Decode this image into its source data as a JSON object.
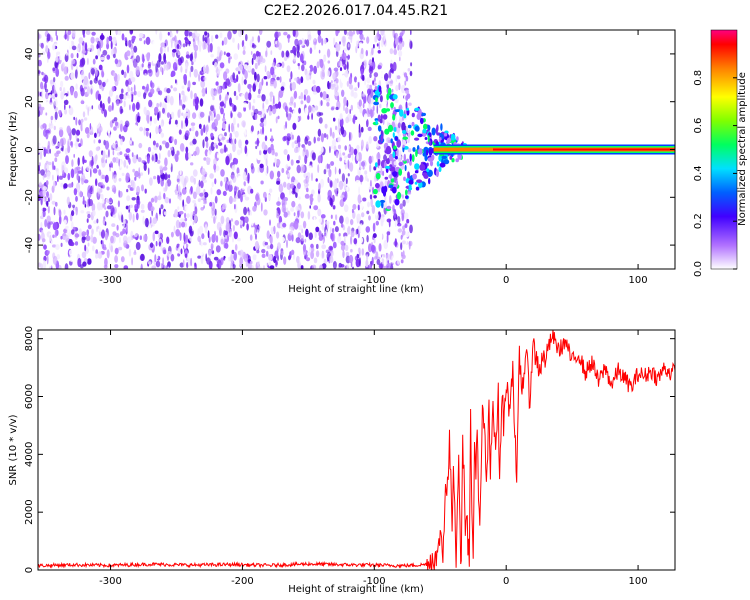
{
  "title": "C2E2.2026.017.04.45.R21",
  "chart_data": [
    {
      "type": "heatmap",
      "xlabel": "Height of straight line (km)",
      "ylabel": "Frequency (Hz)",
      "xlim": [
        -355,
        128
      ],
      "ylim": [
        -50,
        50
      ],
      "xticks": [
        -300,
        -200,
        -100,
        0,
        100
      ],
      "yticks": [
        -40,
        -20,
        0,
        20,
        40
      ],
      "description_values": {
        "noise_region_x": [
          -355,
          -72
        ],
        "signal_line_freq": 0,
        "signal_line_x": [
          -55,
          128
        ]
      },
      "colorbar": {
        "label": "Normalized spectral amplitude",
        "range": [
          0.0,
          1.0
        ],
        "ticks": [
          0.0,
          0.2,
          0.4,
          0.6,
          0.8
        ],
        "tick_labels": [
          "0.0",
          "0.2",
          "0.4",
          "0.6",
          "0.8"
        ]
      }
    },
    {
      "type": "line",
      "xlabel": "Height of straight line (km)",
      "ylabel": "SNR (10 * v/v)",
      "xlim": [
        -355,
        128
      ],
      "ylim": [
        0,
        8300
      ],
      "xticks": [
        -300,
        -200,
        -100,
        0,
        100
      ],
      "yticks": [
        0,
        2000,
        4000,
        6000,
        8000
      ],
      "color": "#ff0000",
      "series": [
        {
          "x": [
            -355,
            -330,
            -300,
            -270,
            -240,
            -210,
            -180,
            -150,
            -120,
            -100,
            -80,
            -70,
            -60,
            -55,
            -52,
            -50,
            -48,
            -46,
            -45,
            -43,
            -41,
            -40,
            -38,
            -36,
            -35,
            -34,
            -33,
            -32,
            -31,
            -30,
            -29,
            -28,
            -27,
            -26,
            -25,
            -24,
            -23,
            -22,
            -21,
            -20,
            -18,
            -16,
            -15,
            -13,
            -12,
            -10,
            -8,
            -6,
            -5,
            -3,
            -2,
            0,
            2,
            5,
            8,
            10,
            12,
            15,
            18,
            20,
            25,
            30,
            35,
            40,
            45,
            50,
            55,
            60,
            65,
            70,
            75,
            80,
            85,
            90,
            95,
            100,
            105,
            110,
            115,
            120,
            125,
            128
          ],
          "y": [
            150,
            180,
            160,
            200,
            170,
            190,
            160,
            210,
            180,
            170,
            150,
            160,
            200,
            500,
            300,
            1500,
            400,
            3200,
            2400,
            4400,
            1600,
            4000,
            400,
            4300,
            1200,
            200,
            4200,
            3800,
            1600,
            2200,
            900,
            600,
            5200,
            1800,
            300,
            4400,
            3600,
            5000,
            2400,
            1200,
            5400,
            4800,
            2600,
            5600,
            3200,
            5800,
            4400,
            6000,
            3000,
            6400,
            4800,
            6600,
            5600,
            7000,
            2800,
            7400,
            6200,
            7600,
            5800,
            7800,
            7000,
            7400,
            8100,
            7600,
            7900,
            7200,
            7500,
            6800,
            7200,
            6500,
            7000,
            6400,
            6900,
            6600,
            6300,
            6800,
            6700,
            6900,
            6600,
            7000,
            6800,
            6900
          ]
        }
      ]
    }
  ]
}
